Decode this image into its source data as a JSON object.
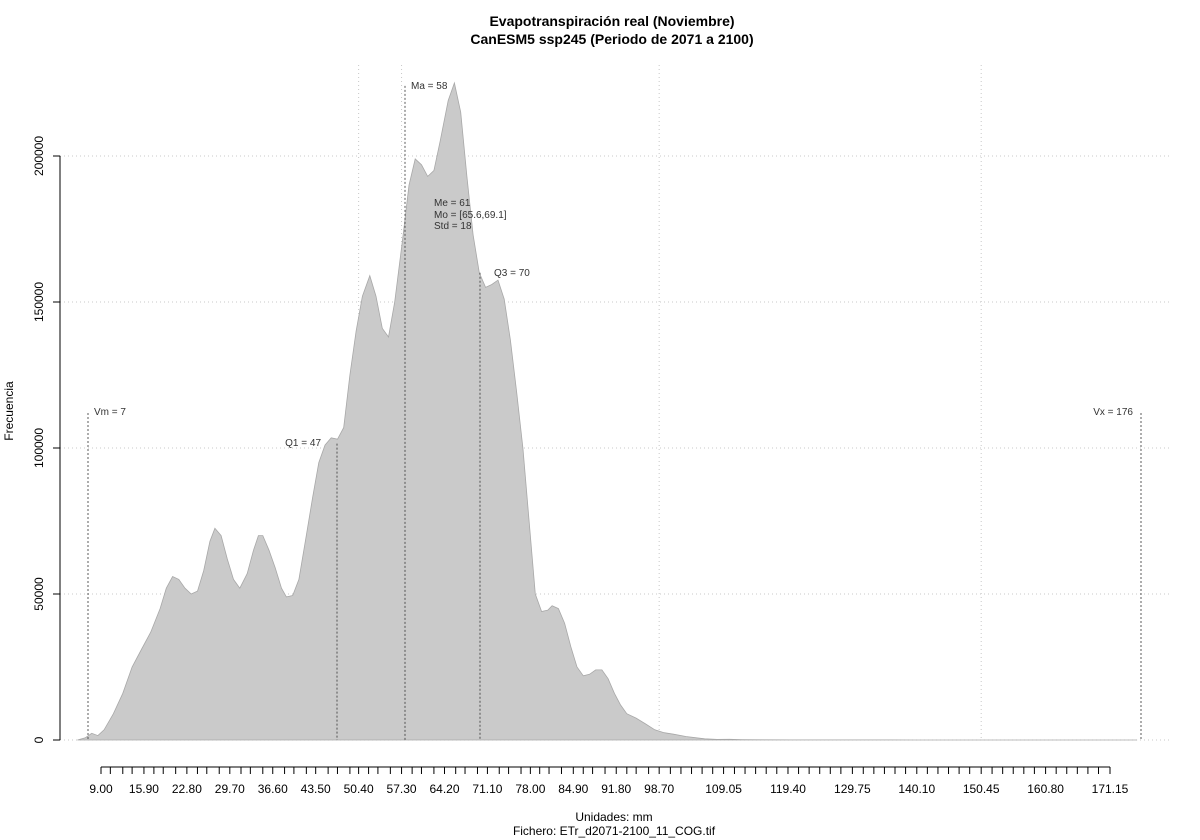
{
  "chart_data": {
    "type": "area",
    "title": "Evapotranspiración real (Noviembre)",
    "subtitle": "CanESM5 ssp245 (Periodo de 2071 a 2100)",
    "xlabel": "Unidades: mm",
    "caption": "Fichero: ETr_d2071-2100_11_COG.tif",
    "ylabel": "Frecuencia",
    "xlim": [
      5,
      180
    ],
    "ylim": [
      0,
      225000
    ],
    "grid": true,
    "x_tick_labels": [
      "9.00",
      "15.90",
      "22.80",
      "29.70",
      "36.60",
      "43.50",
      "50.40",
      "57.30",
      "64.20",
      "71.10",
      "78.00",
      "84.90",
      "91.80",
      "98.70",
      "109.05",
      "119.40",
      "129.75",
      "140.10",
      "150.45",
      "160.80",
      "171.15"
    ],
    "x_tick_values": [
      9.0,
      15.9,
      22.8,
      29.7,
      36.6,
      43.5,
      50.4,
      57.3,
      64.2,
      71.1,
      78.0,
      84.9,
      91.8,
      98.7,
      109.05,
      119.4,
      129.75,
      140.1,
      150.45,
      160.8,
      171.15
    ],
    "x_minor_ticks": [
      10.5,
      12.5,
      14.0,
      17.5,
      19.0,
      21.0,
      24.5,
      26.0,
      28.0,
      31.5,
      33.0,
      35.0,
      38.5,
      40.0,
      42.0,
      45.5,
      47.0,
      49.0,
      52.0,
      53.5,
      55.5,
      59.0,
      60.5,
      62.5,
      66.0,
      67.5,
      69.5,
      73.0,
      74.5,
      76.5,
      79.5,
      81.0,
      83.0,
      86.5,
      88.0,
      90.0,
      93.5,
      95.0,
      97.0,
      100.5,
      102.2,
      103.9,
      105.6,
      107.3,
      110.8,
      112.5,
      114.2,
      115.9,
      117.6,
      121.1,
      122.8,
      124.5,
      126.2,
      127.9,
      131.5,
      133.2,
      134.9,
      136.6,
      138.3,
      141.8,
      143.5,
      145.2,
      146.9,
      148.6,
      152.2,
      153.9,
      155.6,
      157.3,
      159.0,
      162.5,
      164.2,
      165.9,
      167.6,
      169.3
    ],
    "y_tick_labels": [
      "0",
      "50000",
      "100000",
      "150000",
      "200000"
    ],
    "y_tick_values": [
      0,
      50000,
      100000,
      150000,
      200000
    ],
    "x_grid": [
      50.4,
      57.3,
      98.7,
      150.45
    ],
    "y_grid": [
      0,
      50000,
      100000,
      150000,
      200000
    ],
    "series": [
      {
        "values": [
          [
            5.2,
            0
          ],
          [
            6.5,
            800
          ],
          [
            7.5,
            2300
          ],
          [
            8.5,
            1500
          ],
          [
            9.5,
            3500
          ],
          [
            11.0,
            9000
          ],
          [
            12.5,
            16000
          ],
          [
            14.0,
            25000
          ],
          [
            15.5,
            31000
          ],
          [
            17.0,
            37000
          ],
          [
            18.5,
            45000
          ],
          [
            19.5,
            52000
          ],
          [
            20.5,
            56000
          ],
          [
            21.5,
            55000
          ],
          [
            22.5,
            52000
          ],
          [
            23.5,
            50000
          ],
          [
            24.5,
            51000
          ],
          [
            25.5,
            58000
          ],
          [
            26.5,
            68000
          ],
          [
            27.3,
            72500
          ],
          [
            28.3,
            70000
          ],
          [
            29.3,
            62000
          ],
          [
            30.3,
            55000
          ],
          [
            31.3,
            52000
          ],
          [
            32.5,
            57000
          ],
          [
            33.5,
            65000
          ],
          [
            34.3,
            70000
          ],
          [
            35.0,
            70000
          ],
          [
            36.0,
            65000
          ],
          [
            37.0,
            59000
          ],
          [
            38.0,
            52000
          ],
          [
            38.8,
            49000
          ],
          [
            39.8,
            49500
          ],
          [
            40.8,
            55000
          ],
          [
            42.0,
            70000
          ],
          [
            43.0,
            83000
          ],
          [
            44.0,
            95000
          ],
          [
            45.0,
            101000
          ],
          [
            46.0,
            103500
          ],
          [
            47.0,
            103000
          ],
          [
            48.0,
            107000
          ],
          [
            49.0,
            125000
          ],
          [
            50.0,
            140000
          ],
          [
            51.0,
            152000
          ],
          [
            52.2,
            159000
          ],
          [
            53.2,
            152000
          ],
          [
            54.2,
            141000
          ],
          [
            55.2,
            138000
          ],
          [
            56.2,
            150000
          ],
          [
            57.5,
            172000
          ],
          [
            58.5,
            190000
          ],
          [
            59.5,
            199000
          ],
          [
            60.5,
            197000
          ],
          [
            61.5,
            193000
          ],
          [
            62.5,
            195000
          ],
          [
            63.5,
            205000
          ],
          [
            64.8,
            219000
          ],
          [
            65.8,
            225000
          ],
          [
            66.8,
            215000
          ],
          [
            67.8,
            193000
          ],
          [
            68.8,
            173000
          ],
          [
            69.8,
            160000
          ],
          [
            70.8,
            155000
          ],
          [
            71.8,
            156000
          ],
          [
            72.8,
            157500
          ],
          [
            73.8,
            151000
          ],
          [
            74.8,
            137000
          ],
          [
            75.8,
            119000
          ],
          [
            76.8,
            100000
          ],
          [
            77.8,
            75000
          ],
          [
            78.8,
            50000
          ],
          [
            79.8,
            44000
          ],
          [
            80.8,
            44500
          ],
          [
            81.5,
            46000
          ],
          [
            82.5,
            45000
          ],
          [
            83.5,
            40000
          ],
          [
            84.5,
            32000
          ],
          [
            85.5,
            25000
          ],
          [
            86.5,
            22000
          ],
          [
            87.5,
            22500
          ],
          [
            88.5,
            24000
          ],
          [
            89.5,
            24000
          ],
          [
            90.5,
            21000
          ],
          [
            91.5,
            16000
          ],
          [
            92.5,
            12000
          ],
          [
            93.5,
            9000
          ],
          [
            95.0,
            7500
          ],
          [
            96.5,
            5500
          ],
          [
            98.0,
            3500
          ],
          [
            99.5,
            2500
          ],
          [
            101.0,
            2000
          ],
          [
            103.0,
            1200
          ],
          [
            104.5,
            800
          ],
          [
            106.0,
            400
          ],
          [
            108.0,
            200
          ],
          [
            110.0,
            250
          ],
          [
            112.0,
            150
          ],
          [
            115.0,
            80
          ],
          [
            120.0,
            40
          ],
          [
            130.0,
            20
          ],
          [
            140.0,
            10
          ],
          [
            150.0,
            5
          ],
          [
            160.0,
            5
          ],
          [
            170.0,
            2
          ],
          [
            175.5,
            0
          ]
        ]
      }
    ],
    "annotations": [
      {
        "label": "Vm = 7",
        "x": 7,
        "line_top": 112000
      },
      {
        "label": "Q1 = 47",
        "x": 47,
        "line_top": 101500
      },
      {
        "label": "Ma = 58",
        "x": 58,
        "line_top": 224000
      },
      {
        "label": "Me = 61",
        "x": 61
      },
      {
        "label": "Mo = [65.6,69.1]",
        "x": 61
      },
      {
        "label": "Std = 18",
        "x": 61
      },
      {
        "label": "Q3 = 70",
        "x": 70,
        "line_top": 160000
      },
      {
        "label": "Vx = 176",
        "x": 176,
        "line_top": 112000
      }
    ],
    "fill_color": "#cacaca",
    "grid_color": "#c8c8c8"
  }
}
